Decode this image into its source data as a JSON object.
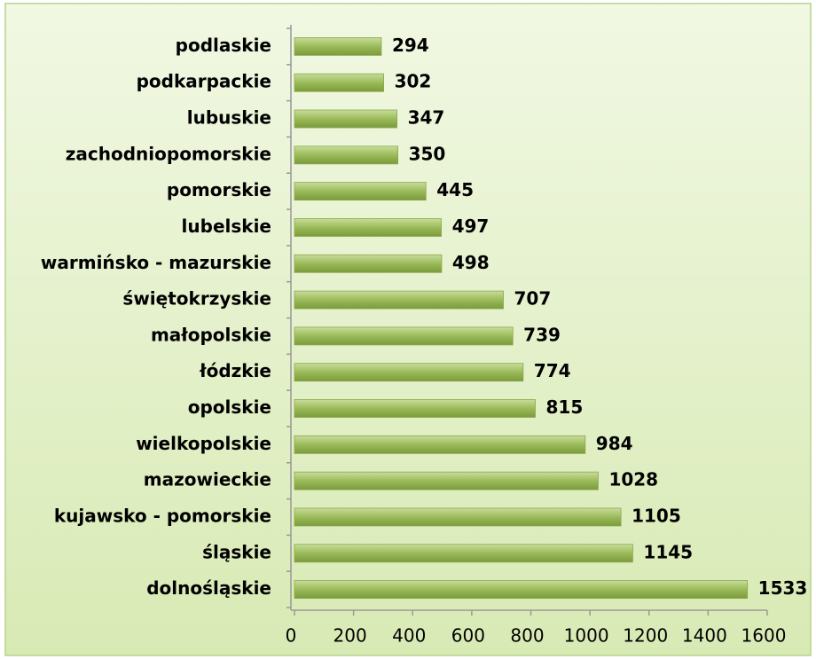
{
  "chart_data": {
    "type": "bar",
    "orientation": "horizontal",
    "categories": [
      "podlaskie",
      "podkarpackie",
      "lubuskie",
      "zachodniopomorskie",
      "pomorskie",
      "lubelskie",
      "warmińsko - mazurskie",
      "świętokrzyskie",
      "małopolskie",
      "łódzkie",
      "opolskie",
      "wielkopolskie",
      "mazowieckie",
      "kujawsko - pomorskie",
      "śląskie",
      "dolnośląskie"
    ],
    "values": [
      294,
      302,
      347,
      350,
      445,
      497,
      498,
      707,
      739,
      774,
      815,
      984,
      1028,
      1105,
      1145,
      1533
    ],
    "color": "#9bbb59",
    "xlim": [
      0,
      1600
    ],
    "xticks": [
      0,
      200,
      400,
      600,
      800,
      1000,
      1200,
      1400,
      1600
    ]
  }
}
